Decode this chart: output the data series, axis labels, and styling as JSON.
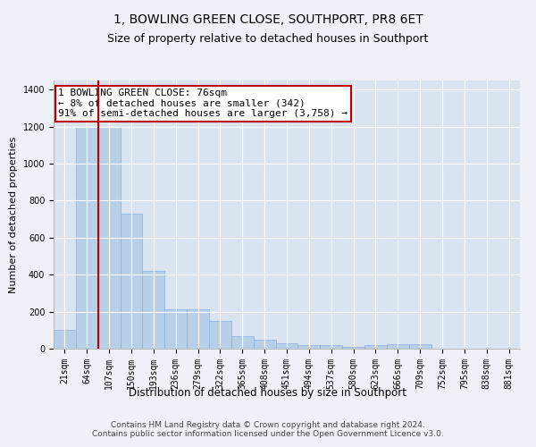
{
  "title": "1, BOWLING GREEN CLOSE, SOUTHPORT, PR8 6ET",
  "subtitle": "Size of property relative to detached houses in Southport",
  "xlabel": "Distribution of detached houses by size in Southport",
  "ylabel": "Number of detached properties",
  "categories": [
    "21sqm",
    "64sqm",
    "107sqm",
    "150sqm",
    "193sqm",
    "236sqm",
    "279sqm",
    "322sqm",
    "365sqm",
    "408sqm",
    "451sqm",
    "494sqm",
    "537sqm",
    "580sqm",
    "623sqm",
    "666sqm",
    "709sqm",
    "752sqm",
    "795sqm",
    "838sqm",
    "881sqm"
  ],
  "values": [
    100,
    1200,
    1200,
    730,
    420,
    215,
    215,
    150,
    70,
    50,
    30,
    20,
    20,
    10,
    20,
    25,
    25,
    0,
    0,
    0,
    0
  ],
  "bar_color": "#b8cfe8",
  "bar_edge_color": "#8aafe0",
  "highlight_line_color": "#c00000",
  "annotation_box_color": "#c00000",
  "annotation_text": "1 BOWLING GREEN CLOSE: 76sqm\n← 8% of detached houses are smaller (342)\n91% of semi-detached houses are larger (3,758) →",
  "ylim": [
    0,
    1450
  ],
  "yticks": [
    0,
    200,
    400,
    600,
    800,
    1000,
    1200,
    1400
  ],
  "background_color": "#eef2f8",
  "plot_bg_color": "#dae4f0",
  "footer": "Contains HM Land Registry data © Crown copyright and database right 2024.\nContains public sector information licensed under the Open Government Licence v3.0.",
  "title_fontsize": 10,
  "subtitle_fontsize": 9,
  "xlabel_fontsize": 8.5,
  "ylabel_fontsize": 8,
  "tick_fontsize": 7,
  "annotation_fontsize": 8,
  "footer_fontsize": 6.5
}
